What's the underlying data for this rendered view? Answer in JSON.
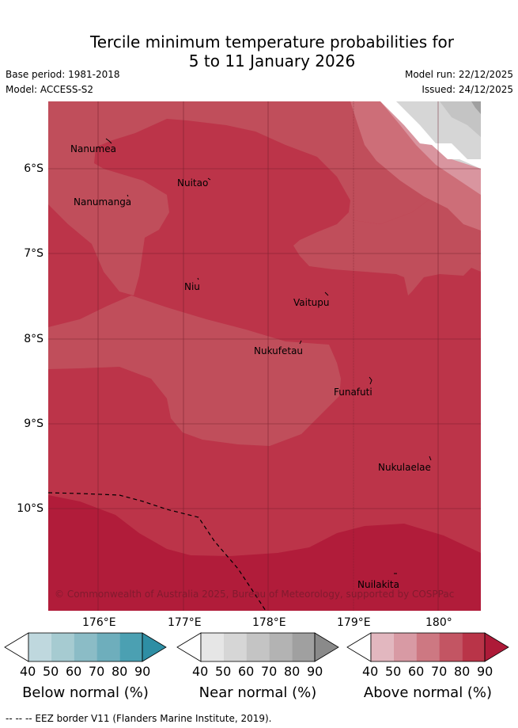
{
  "title_line1": "Tercile minimum temperature probabilities for",
  "title_line2": "5 to 11 January 2026",
  "base_period": "Base period: 1981-2018",
  "model": "Model: ACCESS-S2",
  "model_run": "Model run: 22/12/2025",
  "issued": "Issued: 24/12/2025",
  "lat_ticks": [
    "6°S",
    "7°S",
    "8°S",
    "9°S",
    "10°S"
  ],
  "lon_ticks": [
    "176°E",
    "177°E",
    "178°E",
    "179°E",
    "180°"
  ],
  "places": {
    "nanumea": "Nanumea",
    "nuitao": "Nuitao",
    "nanumanga": "Nanumanga",
    "niu": "Niu",
    "vaitupu": "Vaitupu",
    "nukufetau": "Nukufetau",
    "funafuti": "Funafuti",
    "nukulaelae": "Nukulaelae",
    "nuilakita": "Nuilakita"
  },
  "copyright": "© Commonwealth of Australia 2025, Bureau of Meteorology, supported by COSPPac",
  "colorbar_ticks": [
    "40",
    "50",
    "60",
    "70",
    "80",
    "90"
  ],
  "colorbars": {
    "below": {
      "label": "Below normal (%)",
      "colors": [
        "#bfd8de",
        "#a6cbd1",
        "#8bbcc6",
        "#6eaebc",
        "#4ba0b2"
      ],
      "high": "#2e8ea4"
    },
    "near": {
      "label": "Near normal (%)",
      "colors": [
        "#e6e6e6",
        "#d6d6d6",
        "#c4c4c4",
        "#b3b3b3",
        "#a0a0a0"
      ],
      "high": "#8a8a8a"
    },
    "above": {
      "label": "Above normal (%)",
      "colors": [
        "#e2b7bf",
        "#d89aa4",
        "#cd7882",
        "#c35563",
        "#b93448"
      ],
      "high": "#ad1a38"
    }
  },
  "map_colors": {
    "a60": "#cd6e78",
    "a70": "#c04e5b",
    "a80": "#bc3449",
    "a90": "#b11c3a",
    "n50": "#d6d6d6",
    "n60": "#c4c4c4",
    "n70": "#a0a0a0",
    "a50": "#d9959f"
  },
  "footnote": "-- -- -- EEZ border V11 (Flanders Marine Institute, 2019)."
}
